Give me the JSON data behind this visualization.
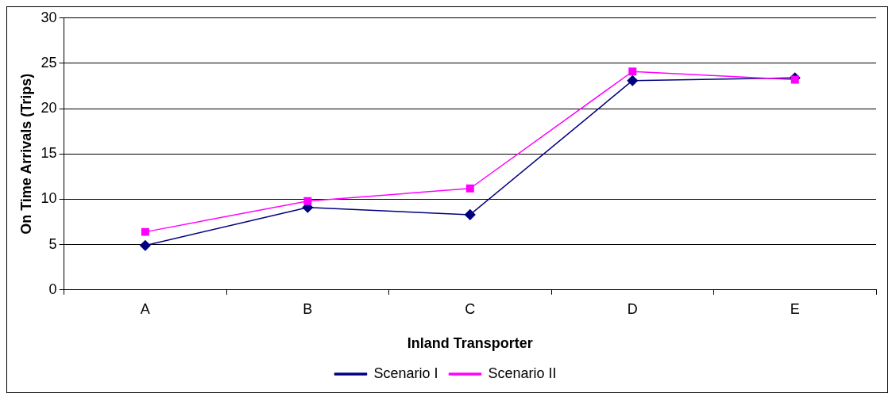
{
  "chart_data": {
    "type": "line",
    "xlabel": "Inland Transporter",
    "ylabel": "On Time Arrivals (Trips)",
    "categories": [
      "A",
      "B",
      "C",
      "D",
      "E"
    ],
    "series": [
      {
        "name": "Scenario I",
        "color": "#000080",
        "marker": "diamond",
        "values": [
          4.9,
          9.1,
          8.3,
          23.1,
          23.4
        ]
      },
      {
        "name": "Scenario II",
        "color": "#ff00ff",
        "marker": "square",
        "values": [
          6.4,
          9.8,
          11.2,
          24.1,
          23.2
        ]
      }
    ],
    "ylim": [
      0,
      30
    ],
    "yticks": [
      0,
      5,
      10,
      15,
      20,
      25,
      30
    ],
    "grid": "y",
    "legend": "bottom",
    "line_style": "solid"
  }
}
